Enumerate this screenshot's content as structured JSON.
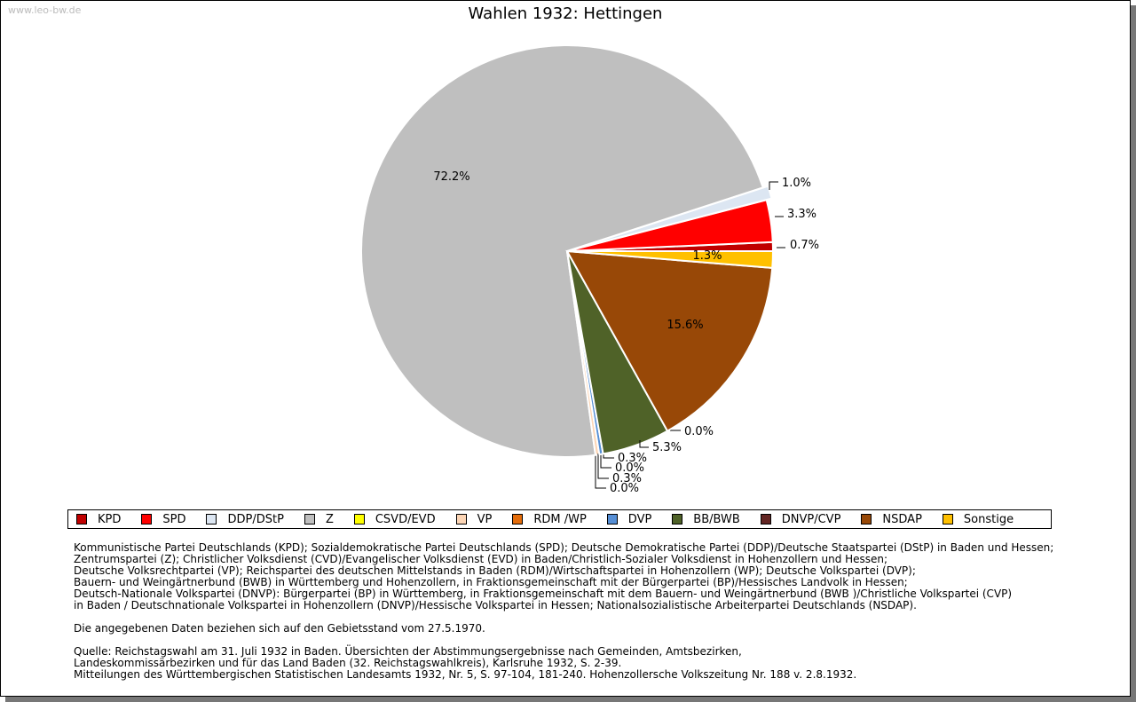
{
  "watermark": "www.leo-bw.de",
  "chart_data": {
    "type": "pie",
    "title": "Wahlen 1932: Hettingen",
    "slices": [
      {
        "name": "KPD",
        "value": 0.7,
        "label": "0.7%",
        "color": "#c00000"
      },
      {
        "name": "SPD",
        "value": 3.3,
        "label": "3.3%",
        "color": "#ff0000"
      },
      {
        "name": "DDP/DStP",
        "value": 1.0,
        "label": "1.0%",
        "color": "#dce6f2"
      },
      {
        "name": "Z",
        "value": 72.2,
        "label": "72.2%",
        "color": "#bfbfbf"
      },
      {
        "name": "CSVD/EVD",
        "value": 0.0,
        "label": "0.0%",
        "color": "#ffff00"
      },
      {
        "name": "VP",
        "value": 0.3,
        "label": "0.3%",
        "color": "#fcd5b5"
      },
      {
        "name": "RDM /WP",
        "value": 0.0,
        "label": "0.0%",
        "color": "#e46c0a"
      },
      {
        "name": "DVP",
        "value": 0.3,
        "label": "0.3%",
        "color": "#558ed5"
      },
      {
        "name": "BB/BWB",
        "value": 5.3,
        "label": "5.3%",
        "color": "#4f6228"
      },
      {
        "name": "DNVP/CVP",
        "value": 0.0,
        "label": "0.0%",
        "color": "#632523"
      },
      {
        "name": "NSDAP",
        "value": 15.6,
        "label": "15.6%",
        "color": "#984807"
      },
      {
        "name": "Sonstige",
        "value": 1.3,
        "label": "1.3%",
        "color": "#ffc000"
      }
    ],
    "legend_position": "bottom"
  },
  "notes": [
    "Kommunistische Partei Deutschlands (KPD); Sozialdemokratische Partei Deutschlands (SPD); Deutsche Demokratische Partei (DDP)/Deutsche Staatspartei (DStP) in Baden und Hessen;",
    "Zentrumspartei (Z); Christlicher Volksdienst (CVD)/Evangelischer Volksdienst (EVD) in Baden/Christlich-Sozialer Volksdienst in Hohenzollern und Hessen;",
    "Deutsche Volksrechtpartei (VP); Reichspartei des deutschen Mittelstands in Baden (RDM)/Wirtschaftspartei in Hohenzollern (WP); Deutsche Volkspartei (DVP);",
    "Bauern- und Weingärtnerbund (BWB) in Württemberg und Hohenzollern, in Fraktionsgemeinschaft mit der Bürgerpartei (BP)/Hessisches Landvolk in Hessen;",
    "Deutsch-Nationale Volkspartei (DNVP): Bürgerpartei (BP) in Württemberg, in Fraktionsgemeinschaft mit dem Bauern- und Weingärtnerbund (BWB )/Christliche Volkspartei (CVP)",
    "in Baden / Deutschnationale Volkspartei in Hohenzollern (DNVP)/Hessische Volkspartei in Hessen; Nationalsozialistische Arbeiterpartei Deutschlands (NSDAP)."
  ],
  "gebietsstand": "Die angegebenen Daten beziehen sich auf den Gebietsstand vom 27.5.1970.",
  "quelle": [
    "Quelle: Reichstagswahl am 31. Juli 1932 in Baden. Übersichten der Abstimmungsergebnisse nach Gemeinden, Amtsbezirken,",
    "Landeskommissärbezirken und für das Land Baden (32. Reichstagswahlkreis), Karlsruhe 1932, S. 2-39.",
    "Mitteilungen des Württembergischen Statistischen Landesamts 1932, Nr. 5, S. 97-104, 181-240. Hohenzollersche Volkszeitung Nr. 188 v. 2.8.1932."
  ]
}
